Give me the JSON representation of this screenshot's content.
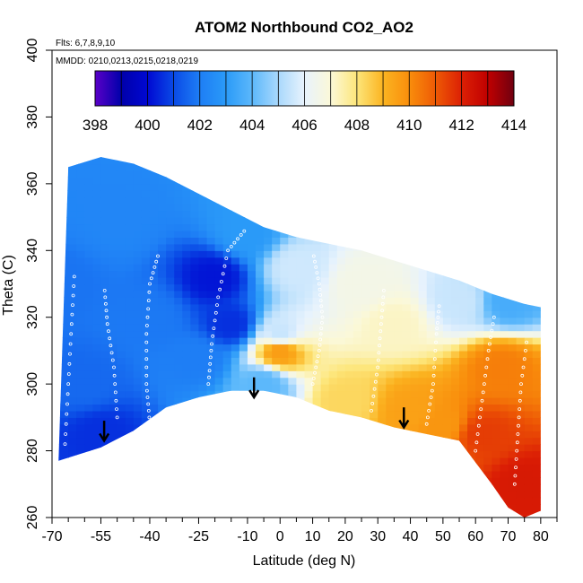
{
  "chart_data": {
    "type": "heatmap",
    "title": "ATOM2 Northbound CO2_AO2",
    "annotations": [
      "Flts: 6,7,8,9,10",
      "MMDD: 0210,0213,0215,0218,0219"
    ],
    "xlabel": "Latitude (deg N)",
    "ylabel": "Theta (C)",
    "xlim": [
      -70,
      85
    ],
    "ylim": [
      260,
      400
    ],
    "x_ticks": [
      -70,
      -55,
      -40,
      -25,
      -10,
      0,
      10,
      20,
      30,
      40,
      50,
      60,
      70,
      80
    ],
    "x_minor_ticks": [
      -65,
      -60,
      -50,
      -45,
      -35,
      -30,
      -20,
      -15,
      -5,
      5,
      15,
      25,
      35,
      45,
      55,
      65,
      75,
      85
    ],
    "y_ticks": [
      260,
      280,
      300,
      320,
      340,
      360,
      380,
      400
    ],
    "colorbar": {
      "min": 398,
      "max": 414,
      "ticks": [
        398,
        400,
        402,
        404,
        406,
        408,
        410,
        412,
        414
      ],
      "stops": [
        {
          "value": 398,
          "color": "#5a00c8"
        },
        {
          "value": 399,
          "color": "#0000aa"
        },
        {
          "value": 400,
          "color": "#0008d2"
        },
        {
          "value": 401,
          "color": "#0a4ae6"
        },
        {
          "value": 402,
          "color": "#1e7ef5"
        },
        {
          "value": 403,
          "color": "#2a9af8"
        },
        {
          "value": 404,
          "color": "#5cb8fb"
        },
        {
          "value": 405,
          "color": "#a9d8fc"
        },
        {
          "value": 406,
          "color": "#e8f3fd"
        },
        {
          "value": 407,
          "color": "#fbf8d8"
        },
        {
          "value": 408,
          "color": "#fde67a"
        },
        {
          "value": 409,
          "color": "#fbb421"
        },
        {
          "value": 410,
          "color": "#f98e0c"
        },
        {
          "value": 411,
          "color": "#ee5a05"
        },
        {
          "value": 412,
          "color": "#dc2005"
        },
        {
          "value": 413,
          "color": "#c00000"
        },
        {
          "value": 414,
          "color": "#700010"
        }
      ]
    },
    "field_anchors": [
      {
        "lat": -68,
        "theta": 330,
        "co2": 401.8
      },
      {
        "lat": -60,
        "theta": 300,
        "co2": 401.6
      },
      {
        "lat": -55,
        "theta": 285,
        "co2": 400.6
      },
      {
        "lat": -50,
        "theta": 350,
        "co2": 402.3
      },
      {
        "lat": -40,
        "theta": 320,
        "co2": 401.9
      },
      {
        "lat": -20,
        "theta": 332,
        "co2": 400.2
      },
      {
        "lat": -25,
        "theta": 308,
        "co2": 402.0
      },
      {
        "lat": -15,
        "theta": 318,
        "co2": 400.6
      },
      {
        "lat": -10,
        "theta": 345,
        "co2": 403.0
      },
      {
        "lat": -5,
        "theta": 300,
        "co2": 404.0
      },
      {
        "lat": 5,
        "theta": 335,
        "co2": 405.6
      },
      {
        "lat": 0,
        "theta": 315,
        "co2": 405.5
      },
      {
        "lat": 0,
        "theta": 310,
        "co2": 409.6
      },
      {
        "lat": 25,
        "theta": 330,
        "co2": 406.6
      },
      {
        "lat": 20,
        "theta": 295,
        "co2": 408.3
      },
      {
        "lat": 40,
        "theta": 292,
        "co2": 409.5
      },
      {
        "lat": 35,
        "theta": 318,
        "co2": 407.2
      },
      {
        "lat": 55,
        "theta": 325,
        "co2": 405.5
      },
      {
        "lat": 70,
        "theta": 325,
        "co2": 403.6
      },
      {
        "lat": 68,
        "theta": 305,
        "co2": 410.3
      },
      {
        "lat": 62,
        "theta": 285,
        "co2": 411.5
      },
      {
        "lat": 75,
        "theta": 270,
        "co2": 412.2
      },
      {
        "lat": 50,
        "theta": 288,
        "co2": 409.8
      }
    ],
    "domain_top_boundary": [
      [
        -65,
        365
      ],
      [
        -55,
        368
      ],
      [
        -45,
        366
      ],
      [
        -35,
        362
      ],
      [
        -25,
        357
      ],
      [
        -15,
        352
      ],
      [
        -5,
        347
      ],
      [
        5,
        344
      ],
      [
        15,
        342
      ],
      [
        25,
        340
      ],
      [
        35,
        337
      ],
      [
        45,
        334
      ],
      [
        55,
        331
      ],
      [
        65,
        327
      ],
      [
        75,
        324
      ],
      [
        80,
        323
      ]
    ],
    "domain_bottom_boundary": [
      [
        -68,
        277
      ],
      [
        -55,
        281
      ],
      [
        -45,
        286
      ],
      [
        -35,
        293
      ],
      [
        -25,
        296
      ],
      [
        -15,
        298
      ],
      [
        -5,
        298
      ],
      [
        5,
        296
      ],
      [
        15,
        292
      ],
      [
        25,
        290
      ],
      [
        35,
        287
      ],
      [
        45,
        285
      ],
      [
        55,
        283
      ],
      [
        65,
        270
      ],
      [
        70,
        263
      ],
      [
        75,
        260
      ],
      [
        80,
        262
      ]
    ],
    "flight_tracks": [
      {
        "points": [
          [
            -66,
            282
          ],
          [
            -65,
            300
          ],
          [
            -64,
            318
          ],
          [
            -63,
            335
          ]
        ]
      },
      {
        "points": [
          [
            -50,
            290
          ],
          [
            -51,
            305
          ],
          [
            -53,
            318
          ],
          [
            -54,
            330
          ]
        ]
      },
      {
        "points": [
          [
            -40,
            288
          ],
          [
            -41,
            300
          ],
          [
            -41,
            315
          ],
          [
            -40,
            330
          ],
          [
            -37,
            340
          ]
        ]
      },
      {
        "points": [
          [
            -22,
            300
          ],
          [
            -21,
            312
          ],
          [
            -19,
            326
          ],
          [
            -16,
            340
          ],
          [
            -10,
            347
          ]
        ]
      },
      {
        "points": [
          [
            10,
            300
          ],
          [
            12,
            310
          ],
          [
            13,
            320
          ],
          [
            12,
            330
          ],
          [
            10,
            340
          ]
        ]
      },
      {
        "points": [
          [
            28,
            292
          ],
          [
            30,
            305
          ],
          [
            31,
            318
          ],
          [
            32,
            330
          ]
        ]
      },
      {
        "points": [
          [
            45,
            288
          ],
          [
            47,
            300
          ],
          [
            48,
            315
          ],
          [
            49,
            325
          ]
        ]
      },
      {
        "points": [
          [
            60,
            280
          ],
          [
            62,
            295
          ],
          [
            64,
            310
          ],
          [
            66,
            322
          ]
        ]
      },
      {
        "points": [
          [
            72,
            270
          ],
          [
            73,
            285
          ],
          [
            74,
            300
          ],
          [
            76,
            315
          ]
        ]
      }
    ],
    "arrows": [
      {
        "lat": -54,
        "theta": 289
      },
      {
        "lat": -8,
        "theta": 302
      },
      {
        "lat": 38,
        "theta": 293
      }
    ]
  }
}
